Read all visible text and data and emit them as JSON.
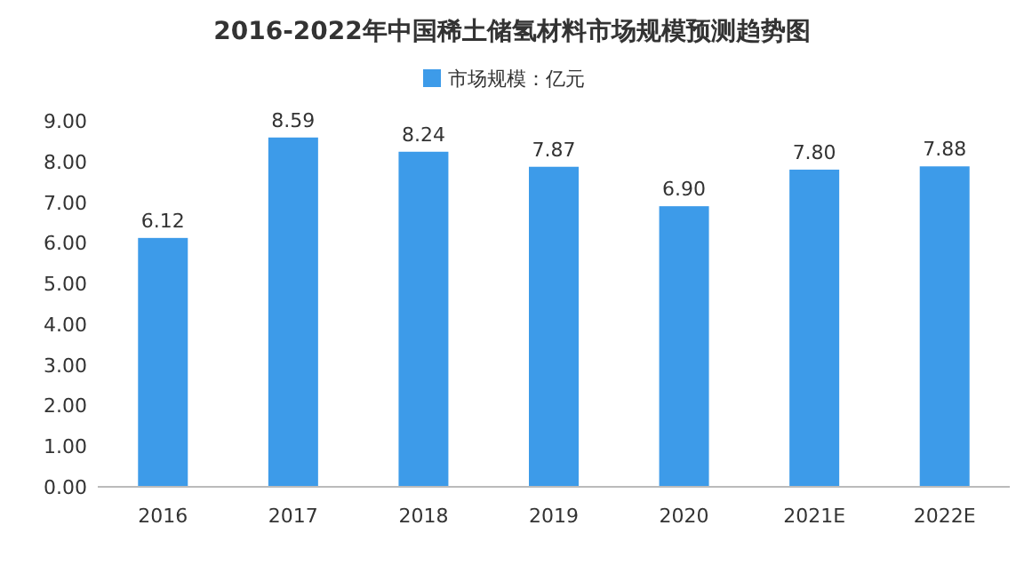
{
  "chart_data": {
    "type": "bar",
    "title": "2016-2022年中国稀土储氢材料市场规模预测趋势图",
    "categories": [
      "2016",
      "2017",
      "2018",
      "2019",
      "2020",
      "2021E",
      "2022E"
    ],
    "series": [
      {
        "name": "市场规模：亿元",
        "color": "#3d9be9",
        "values": [
          6.12,
          8.59,
          8.24,
          7.87,
          6.9,
          7.8,
          7.88
        ],
        "value_labels": [
          "6.12",
          "8.59",
          "8.24",
          "7.87",
          "6.90",
          "7.80",
          "7.88"
        ]
      }
    ],
    "ylim": [
      0,
      9
    ],
    "yticks": [
      {
        "value": 0,
        "label": "0.00"
      },
      {
        "value": 1,
        "label": "1.00"
      },
      {
        "value": 2,
        "label": "2.00"
      },
      {
        "value": 3,
        "label": "3.00"
      },
      {
        "value": 4,
        "label": "4.00"
      },
      {
        "value": 5,
        "label": "5.00"
      },
      {
        "value": 6,
        "label": "6.00"
      },
      {
        "value": 7,
        "label": "7.00"
      },
      {
        "value": 8,
        "label": "8.00"
      },
      {
        "value": 9,
        "label": "9.00"
      }
    ],
    "grid": false,
    "legend": "top"
  }
}
